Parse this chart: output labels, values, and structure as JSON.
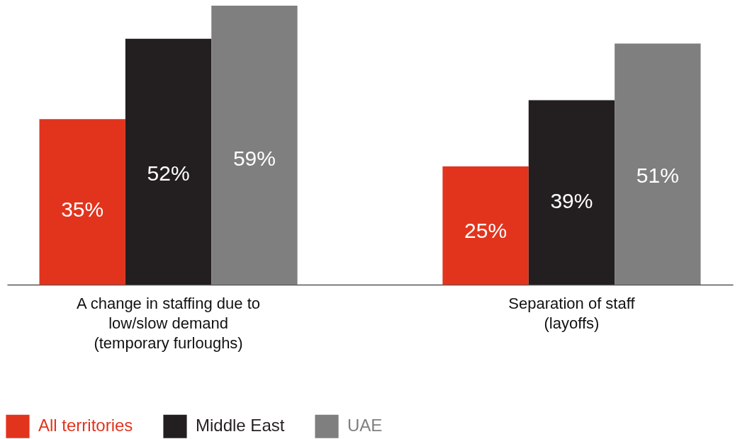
{
  "chart_data": {
    "type": "bar",
    "categories": [
      "A change in staffing due to low/slow demand (temporary furloughs)",
      "Separation of staff (layoffs)"
    ],
    "series": [
      {
        "name": "All territories",
        "color": "#e2341d",
        "values": [
          35,
          25
        ],
        "value_labels": [
          "35%",
          "25%"
        ]
      },
      {
        "name": "Middle East",
        "color": "#231f20",
        "values": [
          52,
          39
        ],
        "value_labels": [
          "52%",
          "39%"
        ]
      },
      {
        "name": "UAE",
        "color": "#7f7f7f",
        "values": [
          59,
          51
        ],
        "value_labels": [
          "59%",
          "51%"
        ]
      }
    ],
    "legend": "bottom left"
  }
}
